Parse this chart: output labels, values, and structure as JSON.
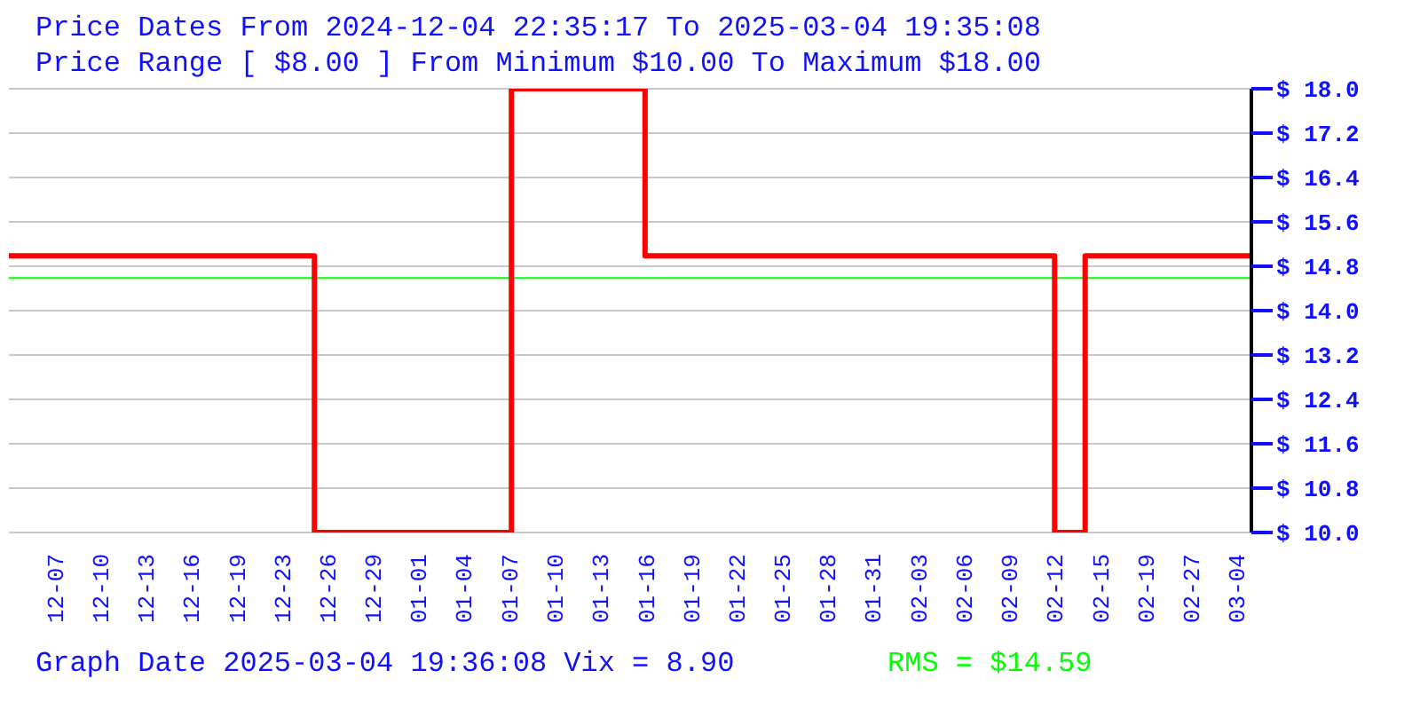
{
  "chart_data": {
    "type": "step",
    "title": "Price Dates From 2024-12-04 22:35:17 To 2025-03-04 19:35:08",
    "subtitle": "Price Range [ $8.00 ] From Minimum $10.00 To Maximum $18.00",
    "annotations": [
      "Graph Date 2025-03-04 19:36:08 Vix = 8.90"
    ],
    "x": [
      "2024-12-04T22:35",
      "2024-12-27T01:00",
      "2025-01-10T07:00",
      "2025-01-19T23:00",
      "2025-02-18T14:00",
      "2025-02-20T19:00",
      "2025-03-04T19:35"
    ],
    "series": [
      {
        "color": "#ff0000",
        "values": [
          14.99,
          10.0,
          18.0,
          14.99,
          10.0,
          14.99,
          14.99
        ]
      }
    ],
    "xlim": [
      "2024-12-04T22:35",
      "2025-03-04T19:35"
    ],
    "xticks": [
      {
        "value": "2024-12-08T07:00",
        "label": "12-07"
      },
      {
        "value": "2024-12-11T14:00",
        "label": "12-10"
      },
      {
        "value": "2024-12-14T21:00",
        "label": "12-13"
      },
      {
        "value": "2024-12-18T04:00",
        "label": "12-16"
      },
      {
        "value": "2024-12-21T11:00",
        "label": "12-19"
      },
      {
        "value": "2024-12-24T18:00",
        "label": "12-23"
      },
      {
        "value": "2024-12-28T01:00",
        "label": "12-26"
      },
      {
        "value": "2024-12-31T07:00",
        "label": "12-29"
      },
      {
        "value": "2025-01-03T14:00",
        "label": "01-01"
      },
      {
        "value": "2025-01-06T21:00",
        "label": "01-04"
      },
      {
        "value": "2025-01-10T04:00",
        "label": "01-07"
      },
      {
        "value": "2025-01-13T11:00",
        "label": "01-10"
      },
      {
        "value": "2025-01-16T18:00",
        "label": "01-13"
      },
      {
        "value": "2025-01-20T01:00",
        "label": "01-16"
      },
      {
        "value": "2025-01-23T08:00",
        "label": "01-19"
      },
      {
        "value": "2025-01-26T15:00",
        "label": "01-22"
      },
      {
        "value": "2025-01-29T22:00",
        "label": "01-25"
      },
      {
        "value": "2025-02-02T04:00",
        "label": "01-28"
      },
      {
        "value": "2025-02-05T11:00",
        "label": "01-31"
      },
      {
        "value": "2025-02-08T18:00",
        "label": "02-03"
      },
      {
        "value": "2025-02-12T01:00",
        "label": "02-06"
      },
      {
        "value": "2025-02-15T08:00",
        "label": "02-09"
      },
      {
        "value": "2025-02-18T15:00",
        "label": "02-12"
      },
      {
        "value": "2025-02-21T22:00",
        "label": "02-15"
      },
      {
        "value": "2025-02-25T05:00",
        "label": "02-19"
      },
      {
        "value": "2025-02-28T12:00",
        "label": "02-27"
      },
      {
        "value": "2025-03-03T18:00",
        "label": "03-04"
      }
    ],
    "ylim": [
      10.0,
      18.0
    ],
    "yticks": [
      {
        "value": 10.0,
        "label": "$ 10.0"
      },
      {
        "value": 10.8,
        "label": "$ 10.8"
      },
      {
        "value": 11.6,
        "label": "$ 11.6"
      },
      {
        "value": 12.4,
        "label": "$ 12.4"
      },
      {
        "value": 13.2,
        "label": "$ 13.2"
      },
      {
        "value": 14.0,
        "label": "$ 14.0"
      },
      {
        "value": 14.8,
        "label": "$ 14.8"
      },
      {
        "value": 15.6,
        "label": "$ 15.6"
      },
      {
        "value": 16.4,
        "label": "$ 16.4"
      },
      {
        "value": 17.2,
        "label": "$ 17.2"
      },
      {
        "value": 18.0,
        "label": "$ 18.0"
      }
    ],
    "grid": "y",
    "ref_lines": [
      {
        "axis": "y",
        "value": 14.59,
        "label": "RMS = $14.59",
        "color": "#00ff00"
      }
    ]
  }
}
